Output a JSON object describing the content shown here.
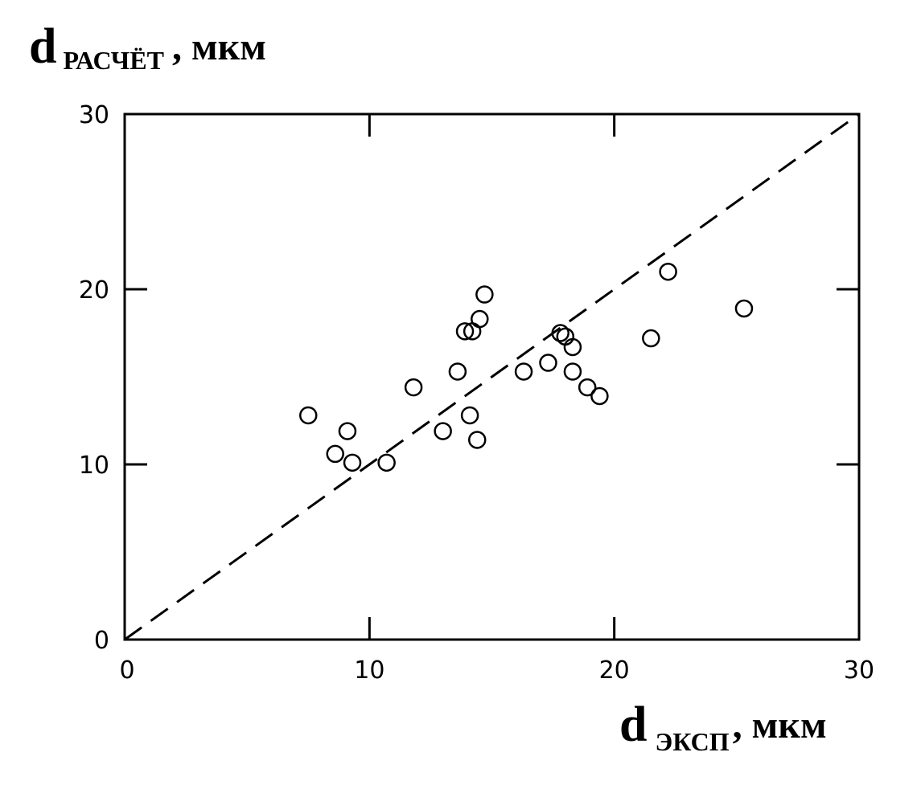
{
  "chart_data": {
    "type": "scatter",
    "title": "",
    "ylabel_main": "d",
    "ylabel_sub": "РАСЧЁТ",
    "ylabel_unit": ", мкм",
    "xlabel_main": "d",
    "xlabel_sub": "ЭКСП",
    "xlabel_unit": ", мкм",
    "xlim": [
      0,
      30
    ],
    "ylim": [
      0,
      30
    ],
    "x_ticks": [
      0,
      10,
      20,
      30
    ],
    "y_ticks": [
      0,
      10,
      20,
      30
    ],
    "x_tick_labels": [
      "0",
      "10",
      "20",
      "30"
    ],
    "y_tick_labels": [
      "0",
      "10",
      "20",
      "30"
    ],
    "grid": false,
    "reference_line": {
      "style": "dashed",
      "from": [
        0,
        0
      ],
      "to": [
        30,
        30
      ]
    },
    "marker": "open-circle",
    "points": [
      {
        "x": 7.5,
        "y": 12.8
      },
      {
        "x": 8.6,
        "y": 10.6
      },
      {
        "x": 9.1,
        "y": 11.9
      },
      {
        "x": 9.3,
        "y": 10.1
      },
      {
        "x": 10.7,
        "y": 10.1
      },
      {
        "x": 11.8,
        "y": 14.4
      },
      {
        "x": 13.0,
        "y": 11.9
      },
      {
        "x": 13.6,
        "y": 15.3
      },
      {
        "x": 13.9,
        "y": 17.6
      },
      {
        "x": 14.1,
        "y": 12.8
      },
      {
        "x": 14.2,
        "y": 17.6
      },
      {
        "x": 14.4,
        "y": 11.4
      },
      {
        "x": 14.5,
        "y": 18.3
      },
      {
        "x": 14.7,
        "y": 19.7
      },
      {
        "x": 16.3,
        "y": 15.3
      },
      {
        "x": 17.3,
        "y": 15.8
      },
      {
        "x": 17.8,
        "y": 17.5
      },
      {
        "x": 18.0,
        "y": 17.3
      },
      {
        "x": 18.3,
        "y": 16.7
      },
      {
        "x": 18.3,
        "y": 15.3
      },
      {
        "x": 18.9,
        "y": 14.4
      },
      {
        "x": 19.4,
        "y": 13.9
      },
      {
        "x": 21.5,
        "y": 17.2
      },
      {
        "x": 22.2,
        "y": 21.0
      },
      {
        "x": 25.3,
        "y": 18.9
      }
    ]
  }
}
